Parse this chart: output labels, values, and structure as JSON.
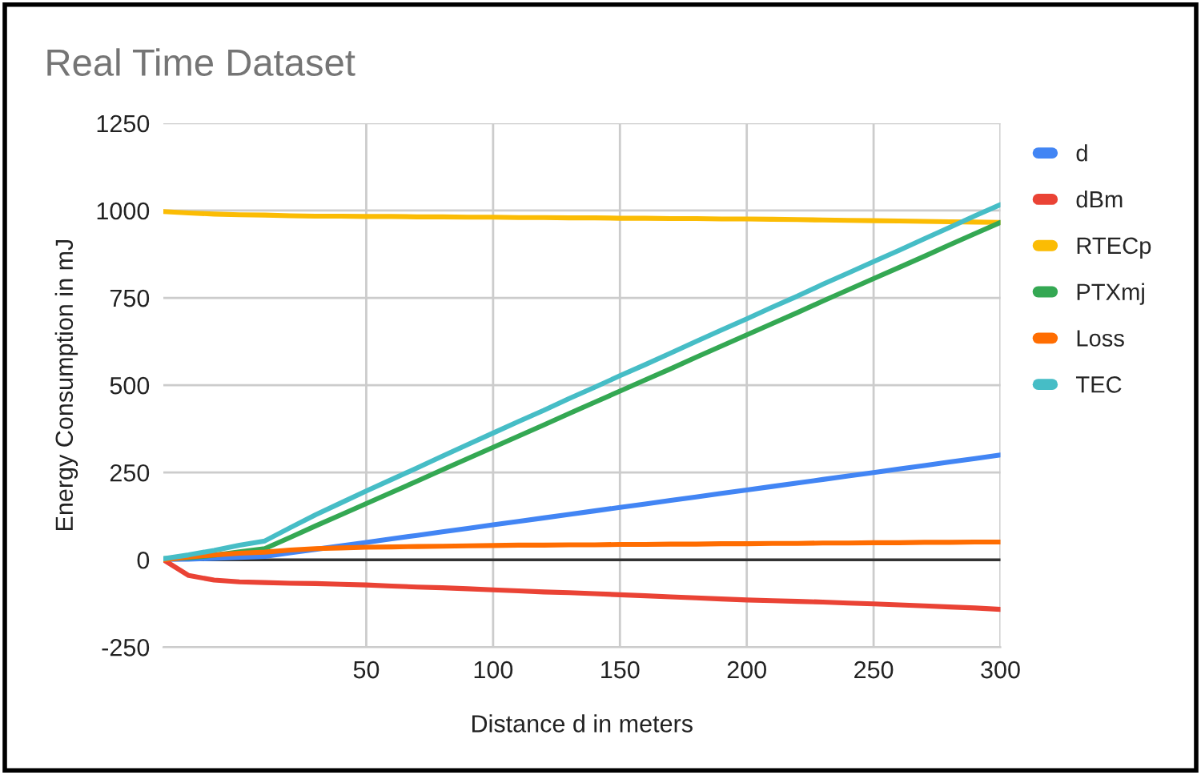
{
  "chart_data": {
    "type": "line",
    "title": "Real Time Dataset",
    "xlabel": "Distance d in meters",
    "ylabel": "Energy Consumption in mJ",
    "categories": [
      null,
      null,
      null,
      null,
      null,
      null,
      null,
      null,
      "50",
      null,
      null,
      null,
      null,
      "100",
      null,
      null,
      null,
      null,
      "150",
      null,
      null,
      null,
      null,
      "200",
      null,
      null,
      null,
      null,
      "250",
      null,
      null,
      null,
      null,
      "300"
    ],
    "series": [
      {
        "name": "d",
        "color": "#4285f4",
        "values": [
          1,
          2,
          4,
          7,
          10,
          20,
          30,
          40,
          50,
          60,
          70,
          80,
          90,
          100,
          110,
          120,
          130,
          140,
          150,
          160,
          170,
          180,
          190,
          200,
          210,
          220,
          230,
          240,
          250,
          260,
          270,
          280,
          290,
          300
        ]
      },
      {
        "name": "dBm",
        "color": "#ea4335",
        "values": [
          0,
          -45,
          -58,
          -63,
          -65,
          -67,
          -68,
          -70,
          -72,
          -75,
          -78,
          -80,
          -83,
          -86,
          -89,
          -92,
          -94,
          -97,
          -100,
          -103,
          -106,
          -109,
          -112,
          -115,
          -117,
          -119,
          -121,
          -124,
          -126,
          -129,
          -132,
          -135,
          -138,
          -142
        ]
      },
      {
        "name": "RTECp",
        "color": "#fbbc04",
        "values": [
          997,
          993,
          990,
          988,
          987,
          985,
          984,
          984,
          983,
          983,
          982,
          982,
          981,
          981,
          980,
          980,
          979,
          979,
          978,
          978,
          977,
          977,
          976,
          976,
          975,
          974,
          973,
          972,
          971,
          970,
          969,
          968,
          967,
          966
        ]
      },
      {
        "name": "PTXmj",
        "color": "#34a853",
        "values": [
          3,
          6,
          13,
          23,
          32,
          64,
          97,
          129,
          161,
          193,
          225,
          258,
          290,
          322,
          354,
          386,
          419,
          451,
          483,
          515,
          547,
          580,
          612,
          644,
          676,
          708,
          741,
          773,
          805,
          837,
          869,
          902,
          934,
          966
        ]
      },
      {
        "name": "Loss",
        "color": "#ff6d01",
        "values": [
          0,
          8,
          14,
          19,
          22,
          28,
          32,
          34,
          36,
          37,
          38,
          39,
          40,
          41,
          42,
          42,
          43,
          43,
          44,
          44,
          45,
          45,
          46,
          46,
          47,
          47,
          48,
          48,
          49,
          49,
          50,
          50,
          51,
          51
        ]
      },
      {
        "name": "TEC",
        "color": "#46bdc6",
        "values": [
          3,
          14,
          27,
          42,
          54,
          92,
          129,
          163,
          197,
          230,
          263,
          297,
          330,
          363,
          396,
          428,
          462,
          494,
          527,
          559,
          592,
          625,
          658,
          690,
          723,
          755,
          789,
          821,
          854,
          886,
          919,
          952,
          985,
          1017
        ]
      }
    ],
    "ylim": [
      -250,
      1250
    ],
    "yticks": [
      -250,
      0,
      250,
      500,
      750,
      1000,
      1250
    ],
    "ref_lines": [
      {
        "axis": "y",
        "value": 0,
        "color": "#333333"
      }
    ],
    "grid": true,
    "legend": "right",
    "marker": "none",
    "line_style": "solid"
  }
}
